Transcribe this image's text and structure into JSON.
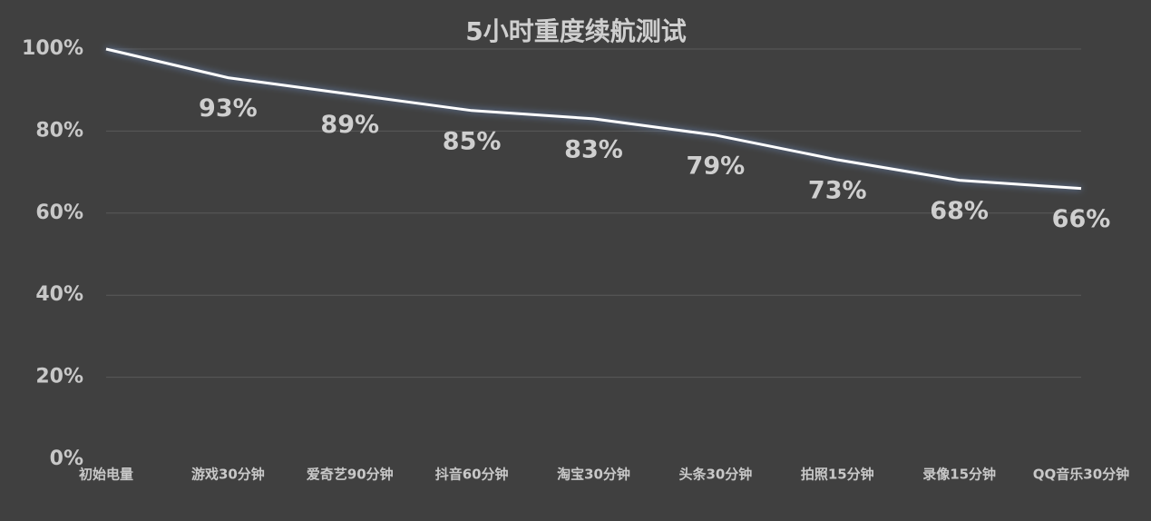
{
  "chart_data": {
    "type": "line",
    "title": "5小时重度续航测试",
    "categories": [
      "初始电量",
      "游戏30分钟",
      "爱奇艺90分钟",
      "抖音60分钟",
      "淘宝30分钟",
      "头条30分钟",
      "拍照15分钟",
      "录像15分钟",
      "QQ音乐30分钟"
    ],
    "values": [
      100,
      93,
      89,
      85,
      83,
      79,
      73,
      68,
      66
    ],
    "value_labels": [
      null,
      "93%",
      "89%",
      "85%",
      "83%",
      "79%",
      "73%",
      "68%",
      "66%"
    ],
    "color": "#ffffff",
    "ylim": [
      0,
      100
    ],
    "yticks": [
      {
        "value": 0,
        "label": "0%"
      },
      {
        "value": 20,
        "label": "20%"
      },
      {
        "value": 40,
        "label": "40%"
      },
      {
        "value": 60,
        "label": "60%"
      },
      {
        "value": 80,
        "label": "80%"
      },
      {
        "value": 100,
        "label": "100%"
      }
    ],
    "grid": true
  }
}
